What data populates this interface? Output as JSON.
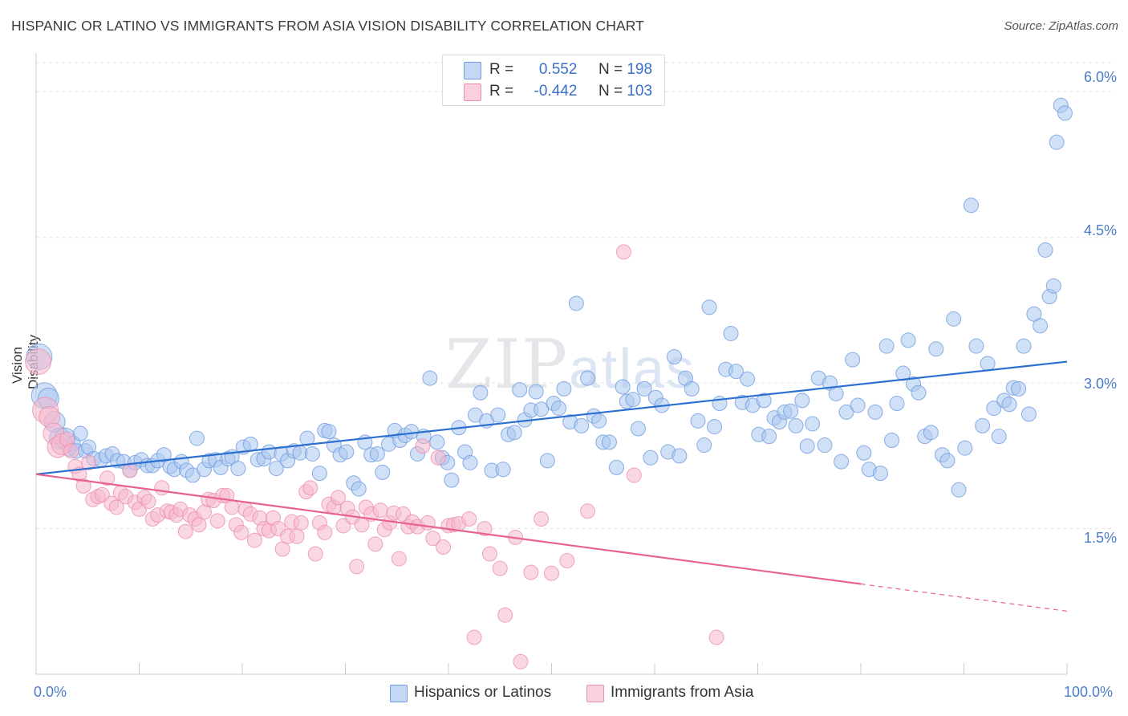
{
  "title": "HISPANIC OR LATINO VS IMMIGRANTS FROM ASIA VISION DISABILITY CORRELATION CHART",
  "source": "Source: ZipAtlas.com",
  "watermark": {
    "zip": "ZIP",
    "atlas": "atlas"
  },
  "legend": {
    "rows": [
      {
        "r_label": "R =",
        "r_value": "0.552",
        "n_label": "N =",
        "n_value": "198"
      },
      {
        "r_label": "R =",
        "r_value": "-0.442",
        "n_label": "N =",
        "n_value": "103"
      }
    ]
  },
  "colors": {
    "blue_fill": "#a9c6ef",
    "blue_stroke": "#6f9be0",
    "blue_line": "#2b6fd0",
    "pink_fill": "#f6b8cc",
    "pink_stroke": "#ec8fae",
    "pink_line": "#e8628f",
    "tick_text": "#4a7cc9",
    "grid": "#e3e3e3"
  },
  "chart_data": {
    "type": "scatter",
    "title": "HISPANIC OR LATINO VS IMMIGRANTS FROM ASIA VISION DISABILITY CORRELATION CHART",
    "xlabel": "",
    "ylabel": "Vision Disability",
    "xlim": [
      0,
      100
    ],
    "ylim": [
      0,
      6.3
    ],
    "x_tick_labels": [
      "0.0%",
      "100.0%"
    ],
    "y_ticks": [
      1.5,
      3.0,
      4.5,
      6.0
    ],
    "y_tick_labels": [
      "1.5%",
      "3.0%",
      "4.5%",
      "6.0%"
    ],
    "grid": true,
    "legend_position": "top-center",
    "series": [
      {
        "name": "Hispanics or Latinos",
        "color": "#6f9be0",
        "trend": {
          "x0": 0,
          "y0": 2.06,
          "x1": 100,
          "y1": 3.22
        },
        "points": [
          [
            0.3,
            3.27
          ],
          [
            0.8,
            2.87
          ],
          [
            1.2,
            2.84
          ],
          [
            1.8,
            2.6
          ],
          [
            2.3,
            2.43
          ],
          [
            2.8,
            2.43
          ],
          [
            3.2,
            2.32
          ],
          [
            3.6,
            2.38
          ],
          [
            3.9,
            2.3
          ],
          [
            4.3,
            2.48
          ],
          [
            4.8,
            2.3
          ],
          [
            5.1,
            2.34
          ],
          [
            5.6,
            2.22
          ],
          [
            6.3,
            2.21
          ],
          [
            6.8,
            2.25
          ],
          [
            7.4,
            2.27
          ],
          [
            7.9,
            2.2
          ],
          [
            8.5,
            2.19
          ],
          [
            9.1,
            2.1
          ],
          [
            9.6,
            2.18
          ],
          [
            10.2,
            2.21
          ],
          [
            10.8,
            2.15
          ],
          [
            11.3,
            2.15
          ],
          [
            11.8,
            2.2
          ],
          [
            12.4,
            2.26
          ],
          [
            13.0,
            2.14
          ],
          [
            13.4,
            2.11
          ],
          [
            14.1,
            2.19
          ],
          [
            14.6,
            2.1
          ],
          [
            15.2,
            2.05
          ],
          [
            15.6,
            2.43
          ],
          [
            16.3,
            2.11
          ],
          [
            16.8,
            2.2
          ],
          [
            17.4,
            2.21
          ],
          [
            17.9,
            2.13
          ],
          [
            18.6,
            2.22
          ],
          [
            19.0,
            2.24
          ],
          [
            19.6,
            2.12
          ],
          [
            20.1,
            2.34
          ],
          [
            20.8,
            2.37
          ],
          [
            21.5,
            2.21
          ],
          [
            22.1,
            2.22
          ],
          [
            22.6,
            2.29
          ],
          [
            23.3,
            2.12
          ],
          [
            23.8,
            2.27
          ],
          [
            24.4,
            2.2
          ],
          [
            25.0,
            2.3
          ],
          [
            25.6,
            2.28
          ],
          [
            26.3,
            2.43
          ],
          [
            26.8,
            2.27
          ],
          [
            27.5,
            2.07
          ],
          [
            28.0,
            2.51
          ],
          [
            28.4,
            2.5
          ],
          [
            28.9,
            2.36
          ],
          [
            29.5,
            2.26
          ],
          [
            30.1,
            2.29
          ],
          [
            30.8,
            1.97
          ],
          [
            31.3,
            1.91
          ],
          [
            31.9,
            2.39
          ],
          [
            32.5,
            2.26
          ],
          [
            33.1,
            2.27
          ],
          [
            33.6,
            2.08
          ],
          [
            34.2,
            2.37
          ],
          [
            34.8,
            2.51
          ],
          [
            35.3,
            2.41
          ],
          [
            35.8,
            2.46
          ],
          [
            36.4,
            2.5
          ],
          [
            37.0,
            2.27
          ],
          [
            37.6,
            2.45
          ],
          [
            38.2,
            3.05
          ],
          [
            38.9,
            2.39
          ],
          [
            39.4,
            2.23
          ],
          [
            39.9,
            2.18
          ],
          [
            40.3,
            2.0
          ],
          [
            41.0,
            2.54
          ],
          [
            41.6,
            2.29
          ],
          [
            42.1,
            2.18
          ],
          [
            42.6,
            2.67
          ],
          [
            43.1,
            2.9
          ],
          [
            43.7,
            2.61
          ],
          [
            44.2,
            2.1
          ],
          [
            44.8,
            2.67
          ],
          [
            45.3,
            2.11
          ],
          [
            45.8,
            2.47
          ],
          [
            46.4,
            2.49
          ],
          [
            46.9,
            2.93
          ],
          [
            47.4,
            2.62
          ],
          [
            48.0,
            2.72
          ],
          [
            48.5,
            2.91
          ],
          [
            49.0,
            2.73
          ],
          [
            49.6,
            2.2
          ],
          [
            50.2,
            2.79
          ],
          [
            50.7,
            2.74
          ],
          [
            51.2,
            2.94
          ],
          [
            51.8,
            2.6
          ],
          [
            52.4,
            3.82
          ],
          [
            52.9,
            2.56
          ],
          [
            53.5,
            3.05
          ],
          [
            54.1,
            2.66
          ],
          [
            54.6,
            2.61
          ],
          [
            55.0,
            2.39
          ],
          [
            55.6,
            2.39
          ],
          [
            56.3,
            2.13
          ],
          [
            56.9,
            2.96
          ],
          [
            57.3,
            2.81
          ],
          [
            57.9,
            2.83
          ],
          [
            58.4,
            2.53
          ],
          [
            59.0,
            2.94
          ],
          [
            59.6,
            2.23
          ],
          [
            60.1,
            2.85
          ],
          [
            60.7,
            2.77
          ],
          [
            61.3,
            2.29
          ],
          [
            61.9,
            3.27
          ],
          [
            62.4,
            2.25
          ],
          [
            63.0,
            3.05
          ],
          [
            63.6,
            2.94
          ],
          [
            64.2,
            2.61
          ],
          [
            64.8,
            2.36
          ],
          [
            65.3,
            3.78
          ],
          [
            65.8,
            2.55
          ],
          [
            66.3,
            2.79
          ],
          [
            66.9,
            3.14
          ],
          [
            67.4,
            3.51
          ],
          [
            67.9,
            3.12
          ],
          [
            68.5,
            2.8
          ],
          [
            69.0,
            3.04
          ],
          [
            69.5,
            2.77
          ],
          [
            70.1,
            2.47
          ],
          [
            70.6,
            2.82
          ],
          [
            71.1,
            2.45
          ],
          [
            71.6,
            2.64
          ],
          [
            72.1,
            2.6
          ],
          [
            72.6,
            2.7
          ],
          [
            73.2,
            2.71
          ],
          [
            73.7,
            2.56
          ],
          [
            74.3,
            2.82
          ],
          [
            74.8,
            2.35
          ],
          [
            75.3,
            2.58
          ],
          [
            75.9,
            3.05
          ],
          [
            76.5,
            2.36
          ],
          [
            77.0,
            3.0
          ],
          [
            77.6,
            2.89
          ],
          [
            78.1,
            2.19
          ],
          [
            78.6,
            2.7
          ],
          [
            79.2,
            3.24
          ],
          [
            79.7,
            2.77
          ],
          [
            80.3,
            2.28
          ],
          [
            80.8,
            2.11
          ],
          [
            81.4,
            2.7
          ],
          [
            81.9,
            2.07
          ],
          [
            82.5,
            3.38
          ],
          [
            83.0,
            2.41
          ],
          [
            83.5,
            2.79
          ],
          [
            84.1,
            3.1
          ],
          [
            84.6,
            3.44
          ],
          [
            85.1,
            2.99
          ],
          [
            85.6,
            2.9
          ],
          [
            86.2,
            2.45
          ],
          [
            86.8,
            2.49
          ],
          [
            87.3,
            3.35
          ],
          [
            87.9,
            2.26
          ],
          [
            88.4,
            2.2
          ],
          [
            89.0,
            3.66
          ],
          [
            89.5,
            1.9
          ],
          [
            90.1,
            2.33
          ],
          [
            90.7,
            4.83
          ],
          [
            91.2,
            3.38
          ],
          [
            91.8,
            2.56
          ],
          [
            92.3,
            3.2
          ],
          [
            92.9,
            2.74
          ],
          [
            93.4,
            2.45
          ],
          [
            93.9,
            2.82
          ],
          [
            94.4,
            2.78
          ],
          [
            94.8,
            2.95
          ],
          [
            95.3,
            2.94
          ],
          [
            95.8,
            3.38
          ],
          [
            96.3,
            2.68
          ],
          [
            96.8,
            3.71
          ],
          [
            97.4,
            3.59
          ],
          [
            97.9,
            4.37
          ],
          [
            98.3,
            3.89
          ],
          [
            98.7,
            4.0
          ],
          [
            99.0,
            5.48
          ],
          [
            99.4,
            5.86
          ],
          [
            99.8,
            5.78
          ]
        ]
      },
      {
        "name": "Immigrants from Asia",
        "color": "#ec8fae",
        "trend": {
          "x0": 0,
          "y0": 2.06,
          "x1": 80,
          "y1": 0.93,
          "dash_to_x": 100,
          "dash_to_y": 0.65
        },
        "points": [
          [
            0.2,
            3.22
          ],
          [
            0.9,
            2.72
          ],
          [
            1.3,
            2.65
          ],
          [
            1.7,
            2.48
          ],
          [
            2.1,
            2.34
          ],
          [
            2.5,
            2.37
          ],
          [
            3.0,
            2.42
          ],
          [
            3.4,
            2.3
          ],
          [
            3.8,
            2.14
          ],
          [
            4.2,
            2.06
          ],
          [
            4.6,
            1.94
          ],
          [
            5.1,
            2.18
          ],
          [
            5.5,
            1.8
          ],
          [
            6.0,
            1.83
          ],
          [
            6.4,
            1.85
          ],
          [
            6.9,
            2.02
          ],
          [
            7.3,
            1.76
          ],
          [
            7.8,
            1.72
          ],
          [
            8.2,
            1.87
          ],
          [
            8.7,
            1.83
          ],
          [
            9.1,
            2.1
          ],
          [
            9.6,
            1.77
          ],
          [
            10.0,
            1.7
          ],
          [
            10.5,
            1.82
          ],
          [
            10.9,
            1.78
          ],
          [
            11.3,
            1.6
          ],
          [
            11.8,
            1.64
          ],
          [
            12.2,
            1.92
          ],
          [
            12.7,
            1.68
          ],
          [
            13.1,
            1.67
          ],
          [
            13.6,
            1.64
          ],
          [
            14.0,
            1.7
          ],
          [
            14.5,
            1.47
          ],
          [
            14.9,
            1.64
          ],
          [
            15.4,
            1.6
          ],
          [
            15.8,
            1.54
          ],
          [
            16.3,
            1.67
          ],
          [
            16.7,
            1.8
          ],
          [
            17.2,
            1.79
          ],
          [
            17.6,
            1.58
          ],
          [
            18.1,
            1.84
          ],
          [
            18.5,
            1.84
          ],
          [
            19.0,
            1.72
          ],
          [
            19.4,
            1.54
          ],
          [
            19.9,
            1.46
          ],
          [
            20.3,
            1.7
          ],
          [
            20.8,
            1.65
          ],
          [
            21.2,
            1.38
          ],
          [
            21.7,
            1.61
          ],
          [
            22.1,
            1.5
          ],
          [
            22.6,
            1.48
          ],
          [
            23.0,
            1.61
          ],
          [
            23.5,
            1.5
          ],
          [
            23.9,
            1.29
          ],
          [
            24.4,
            1.42
          ],
          [
            24.8,
            1.57
          ],
          [
            25.3,
            1.42
          ],
          [
            25.7,
            1.56
          ],
          [
            26.2,
            1.88
          ],
          [
            26.6,
            1.92
          ],
          [
            27.1,
            1.24
          ],
          [
            27.5,
            1.56
          ],
          [
            28.0,
            1.46
          ],
          [
            28.4,
            1.75
          ],
          [
            28.9,
            1.72
          ],
          [
            29.3,
            1.82
          ],
          [
            29.8,
            1.53
          ],
          [
            30.2,
            1.71
          ],
          [
            30.7,
            1.62
          ],
          [
            31.1,
            1.11
          ],
          [
            31.6,
            1.54
          ],
          [
            32.0,
            1.72
          ],
          [
            32.5,
            1.65
          ],
          [
            32.9,
            1.34
          ],
          [
            33.4,
            1.69
          ],
          [
            33.8,
            1.49
          ],
          [
            34.3,
            1.56
          ],
          [
            34.7,
            1.66
          ],
          [
            35.2,
            1.19
          ],
          [
            35.6,
            1.65
          ],
          [
            36.1,
            1.52
          ],
          [
            36.5,
            1.57
          ],
          [
            37.0,
            1.52
          ],
          [
            37.5,
            2.35
          ],
          [
            38.0,
            1.56
          ],
          [
            38.5,
            1.4
          ],
          [
            39.0,
            2.23
          ],
          [
            39.5,
            1.31
          ],
          [
            40.0,
            1.53
          ],
          [
            40.5,
            1.54
          ],
          [
            41.0,
            1.55
          ],
          [
            42.0,
            1.6
          ],
          [
            42.5,
            0.38
          ],
          [
            43.5,
            1.5
          ],
          [
            44.0,
            1.24
          ],
          [
            45.0,
            1.09
          ],
          [
            45.5,
            0.61
          ],
          [
            46.5,
            1.41
          ],
          [
            47.0,
            0.13
          ],
          [
            48.0,
            1.05
          ],
          [
            49.0,
            1.6
          ],
          [
            50.0,
            1.04
          ],
          [
            51.5,
            1.17
          ],
          [
            53.5,
            1.68
          ],
          [
            57.0,
            4.35
          ],
          [
            58.0,
            2.05
          ],
          [
            66.0,
            0.38
          ]
        ]
      }
    ]
  }
}
